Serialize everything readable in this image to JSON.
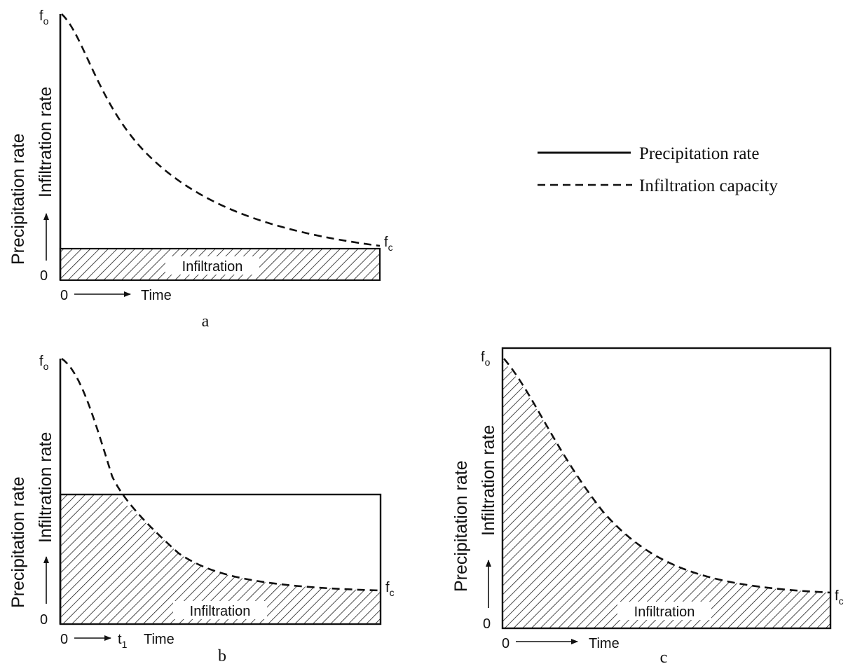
{
  "legend": {
    "precipitation_label": "Precipitation rate",
    "infiltration_capacity_label": "Infiltration capacity"
  },
  "panels": [
    {
      "id": "a",
      "caption": "a",
      "y_label_outer": "Precipitation rate",
      "y_label_inner": "Infiltration rate",
      "fo_label": "f",
      "fo_sub": "o",
      "fc_label": "f",
      "fc_sub": "c",
      "origin_label": "0",
      "x_origin_label": "0",
      "time_label": "Time",
      "area_label": "Infiltration"
    },
    {
      "id": "b",
      "caption": "b",
      "y_label_outer": "Precipitation rate",
      "y_label_inner": "Infiltration rate",
      "fo_label": "f",
      "fo_sub": "o",
      "fc_label": "f",
      "fc_sub": "c",
      "origin_label": "0",
      "x_origin_label": "0",
      "t1_label": "t",
      "t1_sub": "1",
      "time_label": "Time",
      "area_label": "Infiltration"
    },
    {
      "id": "c",
      "caption": "c",
      "y_label_outer": "Precipitation rate",
      "y_label_inner": "Infiltration rate",
      "fo_label": "f",
      "fo_sub": "o",
      "fc_label": "f",
      "fc_sub": "c",
      "origin_label": "0",
      "x_origin_label": "0",
      "time_label": "Time",
      "area_label": "Infiltration"
    }
  ]
}
